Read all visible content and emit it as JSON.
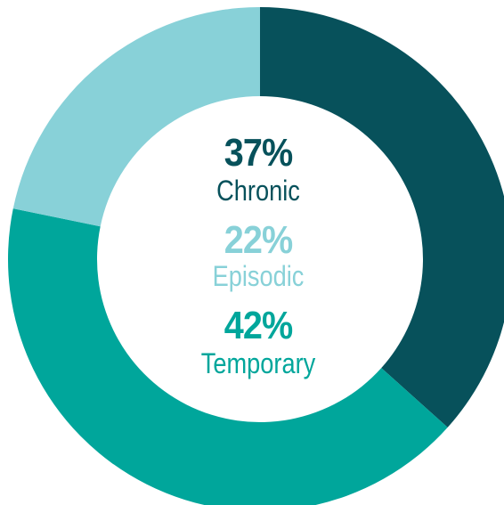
{
  "chart_data": {
    "type": "pie",
    "style": "donut",
    "title": "",
    "slices": [
      {
        "label": "Chronic",
        "value": 37,
        "value_label": "37%",
        "color": "#07515b"
      },
      {
        "label": "Temporary",
        "value": 42,
        "value_label": "42%",
        "color": "#00a69b"
      },
      {
        "label": "Episodic",
        "value": 22,
        "value_label": "22%",
        "color": "#88d1d8"
      }
    ],
    "start_angle_deg": 0,
    "direction": "clockwise",
    "legend": "center"
  }
}
